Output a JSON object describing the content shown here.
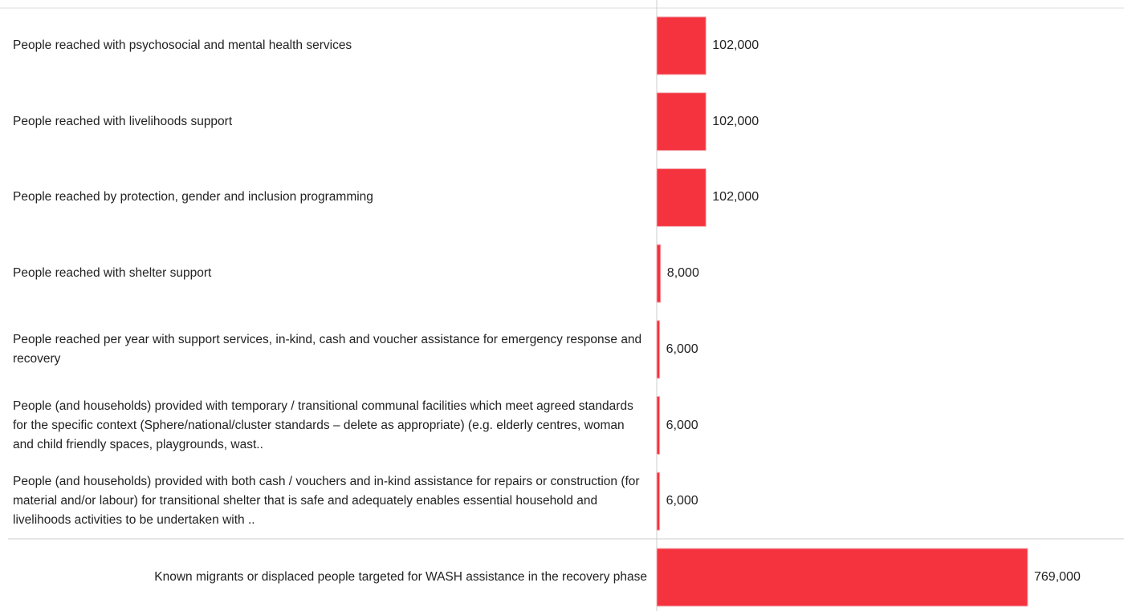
{
  "chart_data": {
    "type": "bar",
    "orientation": "horizontal",
    "color": "#f5333f",
    "categories": [
      "People reached with psychosocial and mental health services",
      "People reached with livelihoods support",
      "People reached by protection, gender and inclusion programming",
      "People reached with shelter support",
      "People reached per year with support services, in-kind, cash and voucher assistance for emergency response and recovery",
      "People (and households) provided with temporary / transitional communal facilities which meet agreed standards for the specific context (Sphere/national/cluster standards – delete as appropriate) (e.g. elderly centres, woman and child friendly spaces, playgrounds, wast..",
      "People (and households) provided with both cash / vouchers and in-kind assistance for repairs or construction (for material and/or labour) for transitional shelter that is safe and adequately enables essential household and livelihoods activities to be undertaken with ..",
      "Known migrants or displaced people targeted for WASH assistance in the recovery phase"
    ],
    "values": [
      102000,
      102000,
      102000,
      8000,
      6000,
      6000,
      6000,
      769000
    ],
    "value_labels": [
      "102,000",
      "102,000",
      "102,000",
      "8,000",
      "6,000",
      "6,000",
      "6,000",
      "769,000"
    ]
  }
}
